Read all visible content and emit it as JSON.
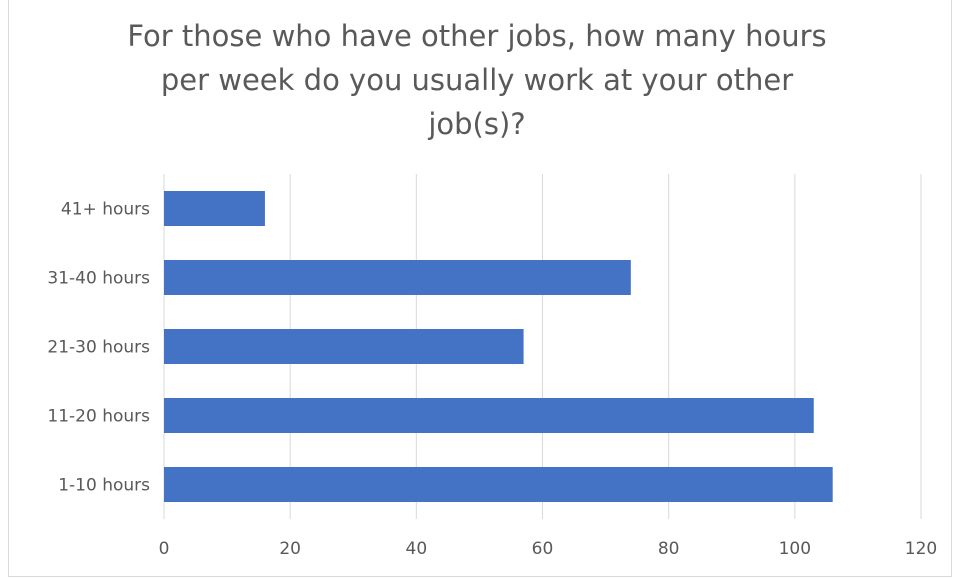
{
  "chart_data": {
    "type": "bar",
    "orientation": "horizontal",
    "title_lines": [
      "For those who have other jobs, how many hours",
      "per week do you usually work at your other",
      "job(s)?"
    ],
    "categories": [
      "41+ hours",
      "31-40 hours",
      "21-30 hours",
      "11-20 hours",
      "1-10 hours"
    ],
    "values": [
      16,
      74,
      57,
      103,
      106
    ],
    "xlim": [
      0,
      120
    ],
    "xticks": [
      "0",
      "20",
      "40",
      "60",
      "80",
      "100",
      "120"
    ],
    "grid": true,
    "colors": {
      "bar": "#4472c4",
      "grid": "#d9d9d9",
      "text": "#595959"
    }
  }
}
